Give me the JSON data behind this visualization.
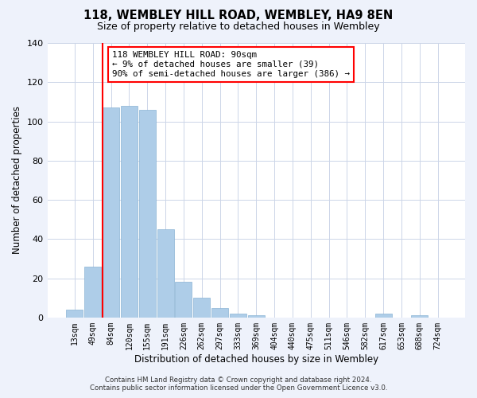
{
  "title": "118, WEMBLEY HILL ROAD, WEMBLEY, HA9 8EN",
  "subtitle": "Size of property relative to detached houses in Wembley",
  "xlabel": "Distribution of detached houses by size in Wembley",
  "ylabel": "Number of detached properties",
  "bar_labels": [
    "13sqm",
    "49sqm",
    "84sqm",
    "120sqm",
    "155sqm",
    "191sqm",
    "226sqm",
    "262sqm",
    "297sqm",
    "333sqm",
    "369sqm",
    "404sqm",
    "440sqm",
    "475sqm",
    "511sqm",
    "546sqm",
    "582sqm",
    "617sqm",
    "653sqm",
    "688sqm",
    "724sqm"
  ],
  "bar_heights": [
    4,
    26,
    107,
    108,
    106,
    45,
    18,
    10,
    5,
    2,
    1,
    0,
    0,
    0,
    0,
    0,
    0,
    2,
    0,
    1,
    0
  ],
  "bar_color": "#aecde8",
  "bar_edge_color": "#8ab4d4",
  "ylim": [
    0,
    140
  ],
  "yticks": [
    0,
    20,
    40,
    60,
    80,
    100,
    120,
    140
  ],
  "annotation_text_line1": "118 WEMBLEY HILL ROAD: 90sqm",
  "annotation_text_line2": "← 9% of detached houses are smaller (39)",
  "annotation_text_line3": "90% of semi-detached houses are larger (386) →",
  "footer_line1": "Contains HM Land Registry data © Crown copyright and database right 2024.",
  "footer_line2": "Contains public sector information licensed under the Open Government Licence v3.0.",
  "background_color": "#eef2fb",
  "plot_bg_color": "#ffffff",
  "grid_color": "#ccd5e8"
}
